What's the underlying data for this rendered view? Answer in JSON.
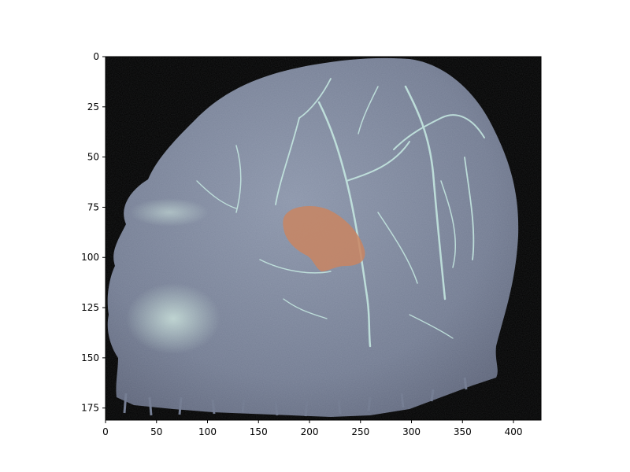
{
  "figure": {
    "kind": "image-plot",
    "subject": "brain MRA volume rendering",
    "x_axis": {
      "min": 0,
      "max": 427,
      "ticks": [
        {
          "value": 0,
          "label": "0"
        },
        {
          "value": 50,
          "label": "50"
        },
        {
          "value": 100,
          "label": "100"
        },
        {
          "value": 150,
          "label": "150"
        },
        {
          "value": 200,
          "label": "200"
        },
        {
          "value": 250,
          "label": "250"
        },
        {
          "value": 300,
          "label": "300"
        },
        {
          "value": 350,
          "label": "350"
        },
        {
          "value": 400,
          "label": "400"
        }
      ]
    },
    "y_axis": {
      "min": 0,
      "max": 181,
      "inverted": true,
      "ticks": [
        {
          "value": 0,
          "label": "0"
        },
        {
          "value": 25,
          "label": "25"
        },
        {
          "value": 50,
          "label": "50"
        },
        {
          "value": 75,
          "label": "75"
        },
        {
          "value": 100,
          "label": "100"
        },
        {
          "value": 125,
          "label": "125"
        },
        {
          "value": 150,
          "label": "150"
        },
        {
          "value": 175,
          "label": "175"
        }
      ]
    },
    "colors": {
      "background": "#000000",
      "head": "#7c869c",
      "vessel": "#c8ece4",
      "highlight": "#c98562"
    }
  }
}
